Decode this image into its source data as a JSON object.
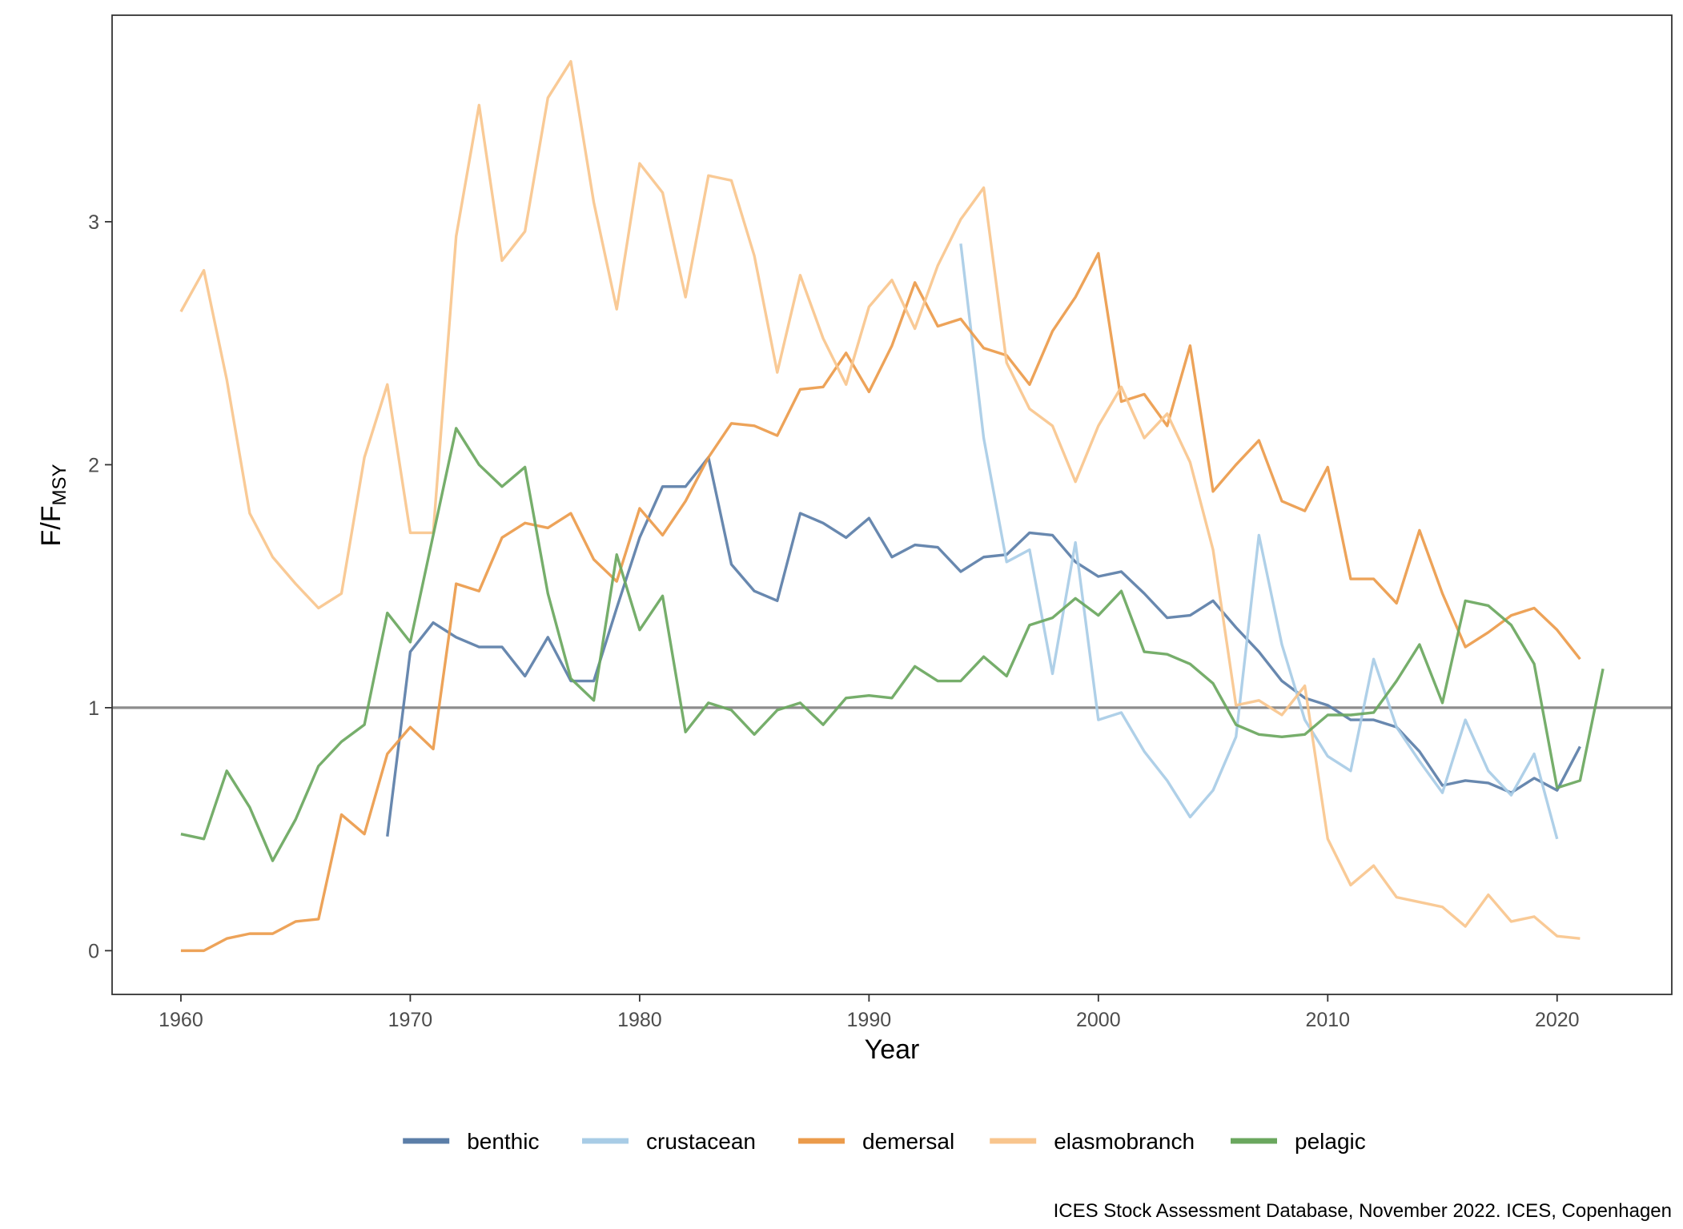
{
  "chart_data": {
    "type": "line",
    "title": "",
    "xlabel": "Year",
    "ylabel": {
      "main": "F/F",
      "sub": "MSY"
    },
    "caption": "ICES Stock Assessment Database, November 2022. ICES, Copenhagen",
    "xlim": [
      1957,
      2025
    ],
    "ylim": [
      -0.18,
      3.85
    ],
    "x_ticks": [
      1960,
      1970,
      1980,
      1990,
      2000,
      2010,
      2020
    ],
    "y_ticks": [
      0,
      1,
      2,
      3
    ],
    "reference_line": {
      "y": 1,
      "color": "#8c8c8c"
    },
    "grid": false,
    "legend_position": "bottom",
    "series": [
      {
        "name": "benthic",
        "color": "#5b7ea8",
        "x": [
          1969,
          1970,
          1971,
          1972,
          1973,
          1974,
          1975,
          1976,
          1977,
          1978,
          1979,
          1980,
          1981,
          1982,
          1983,
          1984,
          1985,
          1986,
          1987,
          1988,
          1989,
          1990,
          1991,
          1992,
          1993,
          1994,
          1995,
          1996,
          1997,
          1998,
          1999,
          2000,
          2001,
          2002,
          2003,
          2004,
          2005,
          2006,
          2007,
          2008,
          2009,
          2010,
          2011,
          2012,
          2013,
          2014,
          2015,
          2016,
          2017,
          2018,
          2019,
          2020,
          2021
        ],
        "values": [
          0.47,
          1.23,
          1.35,
          1.29,
          1.25,
          1.25,
          1.13,
          1.29,
          1.11,
          1.11,
          1.41,
          1.7,
          1.91,
          1.91,
          2.03,
          1.59,
          1.48,
          1.44,
          1.8,
          1.76,
          1.7,
          1.78,
          1.62,
          1.67,
          1.66,
          1.56,
          1.62,
          1.63,
          1.72,
          1.71,
          1.6,
          1.54,
          1.56,
          1.47,
          1.37,
          1.38,
          1.44,
          1.33,
          1.23,
          1.11,
          1.04,
          1.01,
          0.95,
          0.95,
          0.92,
          0.82,
          0.68,
          0.7,
          0.69,
          0.65,
          0.71,
          0.66,
          0.84
        ]
      },
      {
        "name": "crustacean",
        "color": "#a8cce6",
        "x": [
          1994,
          1995,
          1996,
          1997,
          1998,
          1999,
          2000,
          2001,
          2002,
          2003,
          2004,
          2005,
          2006,
          2007,
          2008,
          2009,
          2010,
          2011,
          2012,
          2013,
          2014,
          2015,
          2016,
          2017,
          2018,
          2019,
          2020
        ],
        "values": [
          2.91,
          2.11,
          1.6,
          1.65,
          1.14,
          1.68,
          0.95,
          0.98,
          0.82,
          0.7,
          0.55,
          0.66,
          0.88,
          1.71,
          1.26,
          0.95,
          0.8,
          0.74,
          1.2,
          0.92,
          0.78,
          0.65,
          0.95,
          0.74,
          0.64,
          0.81,
          0.46
        ]
      },
      {
        "name": "demersal",
        "color": "#eb9b4b",
        "x": [
          1960,
          1961,
          1962,
          1963,
          1964,
          1965,
          1966,
          1967,
          1968,
          1969,
          1970,
          1971,
          1972,
          1973,
          1974,
          1975,
          1976,
          1977,
          1978,
          1979,
          1980,
          1981,
          1982,
          1983,
          1984,
          1985,
          1986,
          1987,
          1988,
          1989,
          1990,
          1991,
          1992,
          1993,
          1994,
          1995,
          1996,
          1997,
          1998,
          1999,
          2000,
          2001,
          2002,
          2003,
          2004,
          2005,
          2006,
          2007,
          2008,
          2009,
          2010,
          2011,
          2012,
          2013,
          2014,
          2015,
          2016,
          2017,
          2018,
          2019,
          2020,
          2021
        ],
        "values": [
          0.0,
          0.0,
          0.05,
          0.07,
          0.07,
          0.12,
          0.13,
          0.56,
          0.48,
          0.81,
          0.92,
          0.83,
          1.51,
          1.48,
          1.7,
          1.76,
          1.74,
          1.8,
          1.61,
          1.52,
          1.82,
          1.71,
          1.85,
          2.03,
          2.17,
          2.16,
          2.12,
          2.31,
          2.32,
          2.46,
          2.3,
          2.49,
          2.75,
          2.57,
          2.6,
          2.48,
          2.45,
          2.33,
          2.55,
          2.69,
          2.87,
          2.26,
          2.29,
          2.16,
          2.49,
          1.89,
          2.0,
          2.1,
          1.85,
          1.81,
          1.99,
          1.53,
          1.53,
          1.43,
          1.73,
          1.47,
          1.25,
          1.31,
          1.38,
          1.41,
          1.32,
          1.2
        ]
      },
      {
        "name": "elasmobranch",
        "color": "#f8c58d",
        "x": [
          1960,
          1961,
          1962,
          1963,
          1964,
          1965,
          1966,
          1967,
          1968,
          1969,
          1970,
          1971,
          1972,
          1973,
          1974,
          1975,
          1976,
          1977,
          1978,
          1979,
          1980,
          1981,
          1982,
          1983,
          1984,
          1985,
          1986,
          1987,
          1988,
          1989,
          1990,
          1991,
          1992,
          1993,
          1994,
          1995,
          1996,
          1997,
          1998,
          1999,
          2000,
          2001,
          2002,
          2003,
          2004,
          2005,
          2006,
          2007,
          2008,
          2009,
          2010,
          2011,
          2012,
          2013,
          2014,
          2015,
          2016,
          2017,
          2018,
          2019,
          2020,
          2021
        ],
        "values": [
          2.63,
          2.8,
          2.35,
          1.8,
          1.62,
          1.51,
          1.41,
          1.47,
          2.03,
          2.33,
          1.72,
          1.72,
          2.94,
          3.48,
          2.84,
          2.96,
          3.51,
          3.66,
          3.08,
          2.64,
          3.24,
          3.12,
          2.69,
          3.19,
          3.17,
          2.86,
          2.38,
          2.78,
          2.52,
          2.33,
          2.65,
          2.76,
          2.56,
          2.82,
          3.01,
          3.14,
          2.42,
          2.23,
          2.16,
          1.93,
          2.16,
          2.32,
          2.11,
          2.21,
          2.01,
          1.65,
          1.01,
          1.03,
          0.97,
          1.09,
          0.46,
          0.27,
          0.35,
          0.22,
          0.2,
          0.18,
          0.1,
          0.23,
          0.12,
          0.14,
          0.06,
          0.05
        ]
      },
      {
        "name": "pelagic",
        "color": "#6aa75e",
        "x": [
          1960,
          1961,
          1962,
          1963,
          1964,
          1965,
          1966,
          1967,
          1968,
          1969,
          1970,
          1971,
          1972,
          1973,
          1974,
          1975,
          1976,
          1977,
          1978,
          1979,
          1980,
          1981,
          1982,
          1983,
          1984,
          1985,
          1986,
          1987,
          1988,
          1989,
          1990,
          1991,
          1992,
          1993,
          1994,
          1995,
          1996,
          1997,
          1998,
          1999,
          2000,
          2001,
          2002,
          2003,
          2004,
          2005,
          2006,
          2007,
          2008,
          2009,
          2010,
          2011,
          2012,
          2013,
          2014,
          2015,
          2016,
          2017,
          2018,
          2019,
          2020,
          2021,
          2022
        ],
        "values": [
          0.48,
          0.46,
          0.74,
          0.59,
          0.37,
          0.54,
          0.76,
          0.86,
          0.93,
          1.39,
          1.27,
          1.71,
          2.15,
          2.0,
          1.91,
          1.99,
          1.47,
          1.12,
          1.03,
          1.63,
          1.32,
          1.46,
          0.9,
          1.02,
          0.99,
          0.89,
          0.99,
          1.02,
          0.93,
          1.04,
          1.05,
          1.04,
          1.17,
          1.11,
          1.11,
          1.21,
          1.13,
          1.34,
          1.37,
          1.45,
          1.38,
          1.48,
          1.23,
          1.22,
          1.18,
          1.1,
          0.93,
          0.89,
          0.88,
          0.89,
          0.97,
          0.97,
          0.98,
          1.11,
          1.26,
          1.02,
          1.44,
          1.42,
          1.34,
          1.18,
          0.67,
          0.7,
          1.16
        ]
      }
    ]
  }
}
